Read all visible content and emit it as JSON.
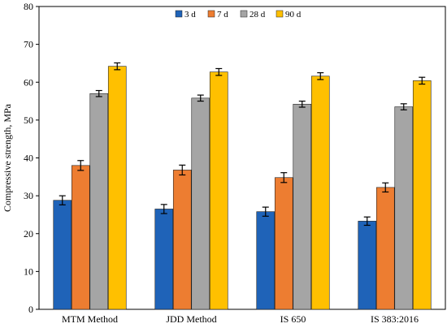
{
  "chart_data": {
    "type": "bar",
    "title": "",
    "xlabel": "",
    "ylabel": "Compressive strength, MPa",
    "ylim": [
      0,
      80
    ],
    "yticks": [
      0,
      10,
      20,
      30,
      40,
      50,
      60,
      70,
      80
    ],
    "grid": false,
    "legend_position": "top-center",
    "categories": [
      "MTM Method",
      "JDD Method",
      "IS 650",
      "IS 383:2016"
    ],
    "series": [
      {
        "name": "3 d",
        "color": "#1f63b8",
        "values": [
          28.8,
          26.5,
          25.8,
          23.3
        ],
        "errors": [
          1.2,
          1.2,
          1.2,
          1.1
        ]
      },
      {
        "name": "7 d",
        "color": "#ed7d31",
        "values": [
          38.0,
          36.8,
          34.8,
          32.2
        ],
        "errors": [
          1.3,
          1.3,
          1.3,
          1.2
        ]
      },
      {
        "name": "28 d",
        "color": "#a5a5a5",
        "values": [
          57.0,
          55.8,
          54.2,
          53.5
        ],
        "errors": [
          0.8,
          0.8,
          0.8,
          0.8
        ]
      },
      {
        "name": "90 d",
        "color": "#ffc000",
        "values": [
          64.2,
          62.7,
          61.6,
          60.4
        ],
        "errors": [
          0.9,
          0.9,
          0.9,
          0.9
        ]
      }
    ]
  }
}
